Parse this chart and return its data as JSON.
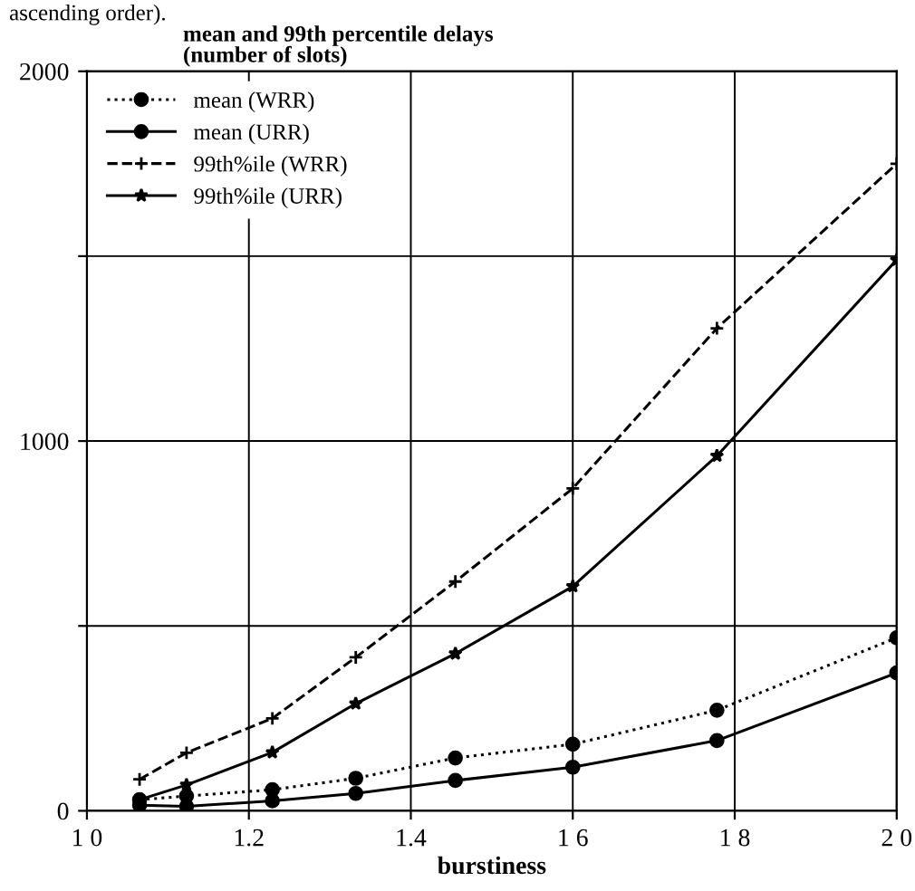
{
  "chart_data": {
    "type": "line",
    "title": "mean and 99th percentile delays\n(number of slots)",
    "xlabel": "burstiness",
    "annotations": [
      "ascending order)."
    ],
    "x": [
      1.065,
      1.123,
      1.229,
      1.332,
      1.455,
      1.6,
      1.778,
      2.0
    ],
    "series": [
      {
        "name": "mean (WRR)",
        "color": "#000000",
        "line_style": "dotted",
        "marker": "circle",
        "values": [
          30,
          40,
          57,
          88,
          143,
          180,
          272,
          468
        ]
      },
      {
        "name": "mean (URR)",
        "color": "#000000",
        "line_style": "solid",
        "marker": "circle",
        "values": [
          15,
          12,
          27,
          47,
          82,
          118,
          190,
          373
        ]
      },
      {
        "name": "99th%ile (WRR)",
        "color": "#000000",
        "line_style": "dashed",
        "marker": "cross",
        "values": [
          85,
          157,
          250,
          415,
          620,
          872,
          1305,
          1750
        ]
      },
      {
        "name": "99th%ile (URR)",
        "color": "#000000",
        "line_style": "solid",
        "marker": "star",
        "values": [
          30,
          70,
          158,
          290,
          425,
          607,
          960,
          1490
        ]
      }
    ],
    "xlim": [
      1.0,
      2.0
    ],
    "ylim": [
      0,
      2000
    ],
    "xticks": [
      {
        "value": 1.0,
        "label": "1 0"
      },
      1.2,
      1.4,
      {
        "value": 1.6,
        "label": "1 6"
      },
      {
        "value": 1.8,
        "label": "1 8"
      },
      {
        "value": 2.0,
        "label": "2 0"
      }
    ],
    "yticks": [
      0,
      {
        "value": 500,
        "label": null
      },
      1000,
      {
        "value": 1500,
        "label": null
      },
      2000
    ],
    "grid": true,
    "legend": "top left"
  }
}
